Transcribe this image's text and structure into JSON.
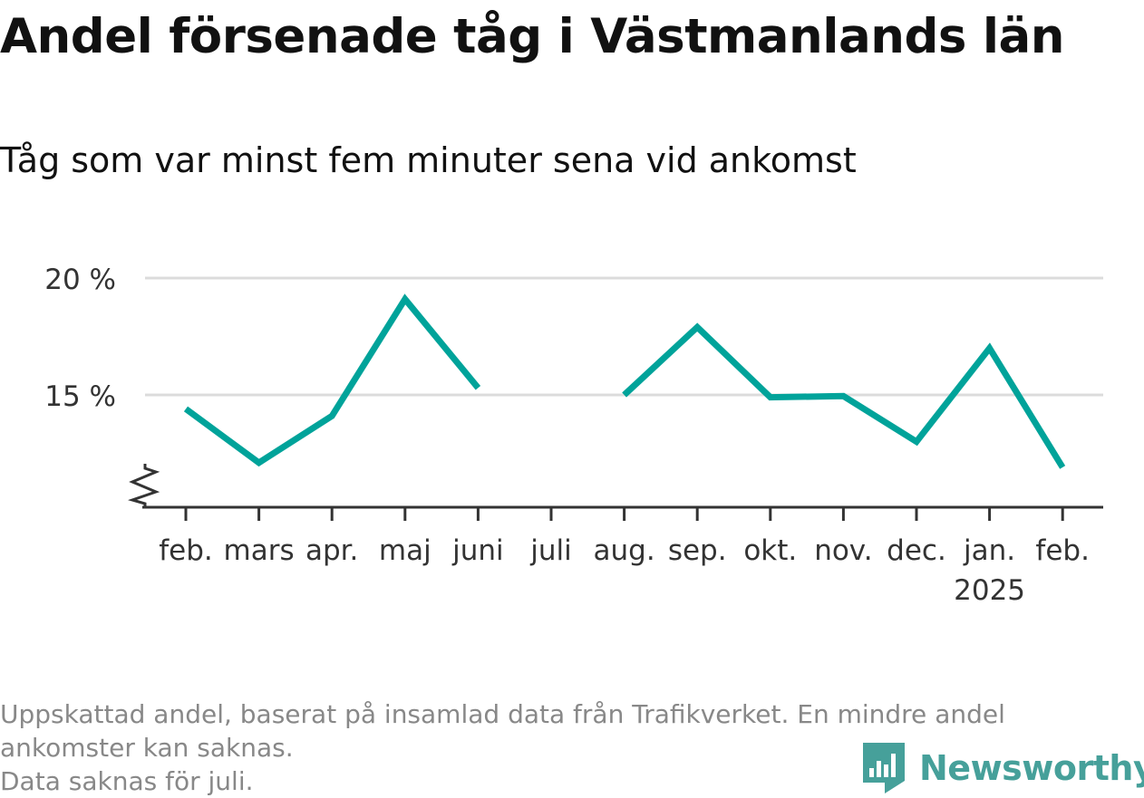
{
  "title": "Andel försenade tåg i Västmanlands län",
  "subtitle": "Tåg som var minst fem minuter sena vid ankomst",
  "footnote": [
    "Uppskattad andel, baserat på insamlad data från Trafikverket. En mindre andel",
    "ankomster kan saknas.",
    "Data saknas för juli."
  ],
  "brand": {
    "name": "Newsworthy",
    "color": "#46a09a"
  },
  "colors": {
    "line": "#00a39a",
    "grid": "#dcdcdc",
    "axis": "#333333"
  },
  "chart_data": {
    "type": "line",
    "title": "Andel försenade tåg i Västmanlands län",
    "subtitle": "Tåg som var minst fem minuter sena vid ankomst",
    "categories": [
      "feb.",
      "mars",
      "apr.",
      "maj",
      "juni",
      "juli",
      "aug.",
      "sep.",
      "okt.",
      "nov.",
      "dec.",
      "jan.",
      "feb."
    ],
    "year_labels": [
      "",
      "",
      "",
      "",
      "",
      "",
      "",
      "",
      "",
      "",
      "",
      "2025",
      ""
    ],
    "series": [
      {
        "values": [
          14.4,
          12.1,
          14.1,
          19.1,
          15.3,
          null,
          15.0,
          17.9,
          14.9,
          14.95,
          13.0,
          17.0,
          11.9
        ]
      }
    ],
    "yticks": [
      15,
      20
    ],
    "ytick_labels": [
      "15 %",
      "20 %"
    ],
    "ylim": [
      10.5,
      20
    ],
    "axis_break": true,
    "grid": true,
    "legend": "none"
  }
}
